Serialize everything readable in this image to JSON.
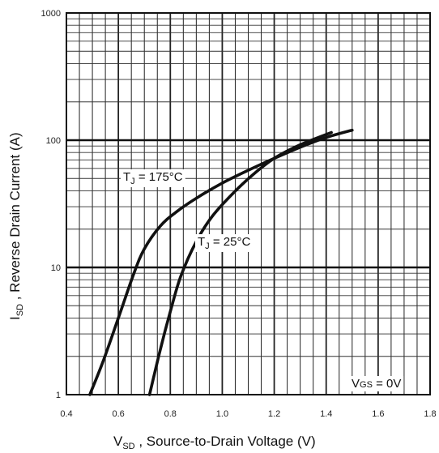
{
  "chart_data": {
    "type": "line",
    "xlabel": {
      "main": "V",
      "sub": "SD",
      "rest": " , Source-to-Drain Voltage (V)"
    },
    "ylabel": {
      "main": "I",
      "sub": "SD",
      "rest": " , Reverse Drain Current (A)"
    },
    "xlim": [
      0.4,
      1.8
    ],
    "ylim": [
      1,
      1000
    ],
    "yscale": "log",
    "grid": true,
    "x_ticks": [
      "0.4",
      "0.6",
      "0.8",
      "1.0",
      "1.2",
      "1.4",
      "1.6",
      "1.8"
    ],
    "y_ticks": [
      "1",
      "10",
      "100",
      "1000"
    ],
    "series": [
      {
        "name": {
          "main": "T",
          "sub": "J",
          "rest": " = 175°C"
        },
        "x": [
          0.49,
          0.54,
          0.6,
          0.66,
          0.7,
          0.76,
          0.82,
          0.9,
          1.0,
          1.1,
          1.2,
          1.3,
          1.4,
          1.5
        ],
        "y": [
          1,
          1.8,
          4,
          9,
          14,
          21,
          27,
          35,
          46,
          58,
          72,
          88,
          105,
          120
        ]
      },
      {
        "name": {
          "main": "T",
          "sub": "J",
          "rest": " = 25°C"
        },
        "x": [
          0.72,
          0.76,
          0.8,
          0.84,
          0.9,
          0.96,
          1.04,
          1.12,
          1.2,
          1.3,
          1.42
        ],
        "y": [
          1,
          2.2,
          4.5,
          8.5,
          16,
          25,
          38,
          54,
          72,
          92,
          115
        ]
      }
    ],
    "annotations": [
      {
        "main": "V",
        "sub": "GS",
        "rest": "   = 0V"
      }
    ]
  }
}
